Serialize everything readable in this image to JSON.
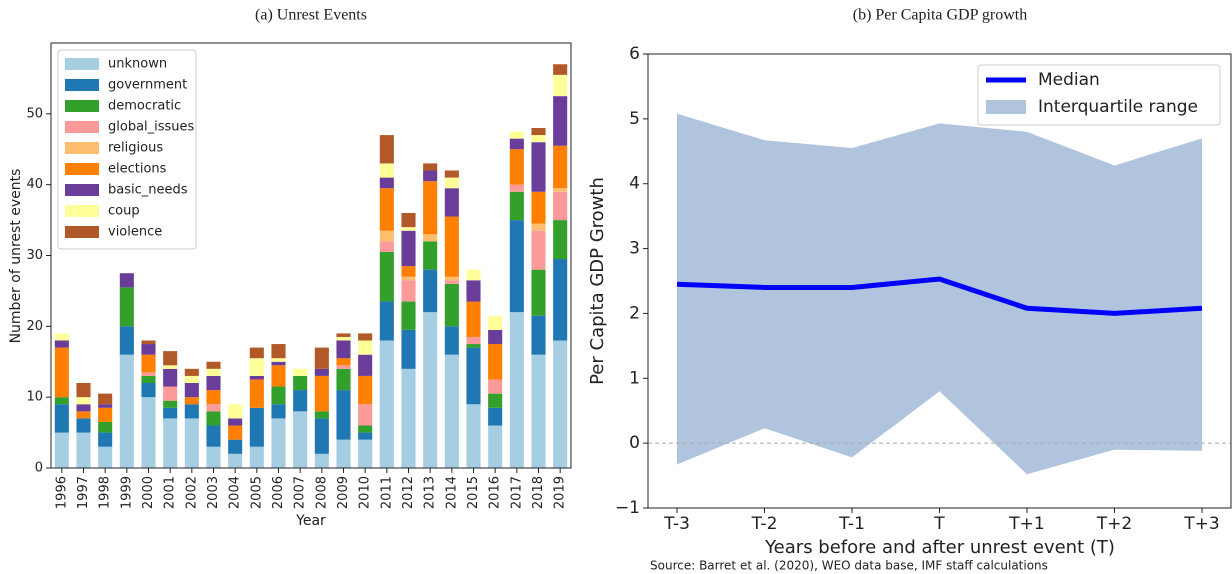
{
  "chart_data": [
    {
      "type": "stacked_bar",
      "title": "(a) Unrest Events",
      "xlabel": "Year",
      "ylabel": "Number of unrest events",
      "categories": [
        "1996",
        "1997",
        "1998",
        "1999",
        "2000",
        "2001",
        "2002",
        "2003",
        "2004",
        "2005",
        "2006",
        "2007",
        "2008",
        "2009",
        "2010",
        "2011",
        "2012",
        "2013",
        "2014",
        "2015",
        "2016",
        "2017",
        "2018",
        "2019"
      ],
      "series": [
        {
          "name": "unknown",
          "color": "#a6cee3",
          "values": [
            5,
            5,
            3,
            16,
            10,
            7,
            7,
            3,
            2,
            3,
            7,
            8,
            2,
            4,
            4,
            18,
            14,
            22,
            16,
            9,
            6,
            22,
            16,
            18
          ]
        },
        {
          "name": "government",
          "color": "#1f78b4",
          "values": [
            4,
            2,
            2,
            4,
            2,
            1.5,
            2,
            3,
            2,
            5.5,
            2,
            3,
            5,
            7,
            1,
            5.5,
            5.5,
            6,
            4,
            8,
            2.5,
            13,
            5.5,
            11.5
          ]
        },
        {
          "name": "democratic",
          "color": "#33a02c",
          "values": [
            1,
            0,
            1.5,
            5.5,
            1,
            1,
            0,
            2,
            0,
            0,
            2.5,
            2,
            1,
            3,
            1,
            7,
            4,
            4,
            6,
            0.5,
            2,
            4,
            6.5,
            5.5
          ]
        },
        {
          "name": "global_issues",
          "color": "#fb9a99",
          "values": [
            0,
            0,
            0,
            0,
            0.5,
            2,
            0,
            1,
            0,
            0,
            0,
            0,
            0,
            0.5,
            3,
            1.5,
            3,
            0,
            0.5,
            1,
            2,
            1,
            5.5,
            4
          ]
        },
        {
          "name": "religious",
          "color": "#fdbf6f",
          "values": [
            0,
            0,
            0,
            0,
            0,
            0,
            0,
            0,
            0,
            0,
            0,
            0,
            0,
            0,
            0,
            1.5,
            0.5,
            1,
            0.5,
            0,
            0,
            0,
            1,
            0.5
          ]
        },
        {
          "name": "elections",
          "color": "#ff7f00",
          "values": [
            7,
            1,
            2,
            0,
            2.5,
            0,
            1,
            2,
            2,
            4,
            3,
            0,
            5,
            1,
            4,
            6,
            1.5,
            7.5,
            8.5,
            5,
            5,
            5,
            4.5,
            6
          ]
        },
        {
          "name": "basic_needs",
          "color": "#6a3d9a",
          "values": [
            1,
            1,
            0.5,
            2,
            1.5,
            2.5,
            2,
            2,
            1,
            0.5,
            0.5,
            0,
            1,
            2.5,
            3,
            1.5,
            5,
            1.5,
            4,
            3,
            2,
            1.5,
            7,
            7
          ]
        },
        {
          "name": "coup",
          "color": "#ffff99",
          "values": [
            1,
            1,
            0,
            0,
            0,
            0.5,
            1,
            1,
            2,
            2.5,
            0.5,
            1,
            0,
            0.5,
            2,
            2,
            0.5,
            0,
            1.5,
            1.5,
            2,
            1,
            1,
            3
          ]
        },
        {
          "name": "violence",
          "color": "#b15928",
          "values": [
            0,
            2,
            1.5,
            0,
            0.5,
            2,
            1,
            1,
            0,
            1.5,
            2,
            0,
            3,
            0.5,
            1,
            4,
            2,
            1,
            1,
            0,
            0,
            0,
            1,
            1.5
          ]
        }
      ],
      "ylim": [
        0,
        60
      ],
      "yticks": [
        0,
        10,
        20,
        30,
        40,
        50
      ],
      "legend": "upper left"
    },
    {
      "type": "line_band",
      "title": "(b) Per Capita GDP growth",
      "xlabel": "Years before and after unrest event (T)",
      "ylabel": "Per Capita GDP Growth",
      "source": "Source: Barret et al. (2020), WEO data base, IMF staff calculations",
      "categories": [
        "T-3",
        "T-2",
        "T-1",
        "T",
        "T+1",
        "T+2",
        "T+3"
      ],
      "series": [
        {
          "name": "Median",
          "color": "#0000ff",
          "values": [
            2.45,
            2.4,
            2.4,
            2.53,
            2.08,
            2.0,
            2.08
          ]
        }
      ],
      "band": {
        "name": "Interquartile range",
        "color": "#b0c4de",
        "lower": [
          -0.33,
          0.23,
          -0.22,
          0.8,
          -0.48,
          -0.1,
          -0.12
        ],
        "upper": [
          5.08,
          4.67,
          4.55,
          4.93,
          4.8,
          4.28,
          4.7
        ]
      },
      "hline": 0,
      "ylim": [
        -1,
        6
      ],
      "yticks": [
        {
          "value": -1,
          "label": "−1"
        },
        0,
        1,
        2,
        3,
        4,
        5,
        6
      ],
      "legend": "upper right"
    }
  ]
}
